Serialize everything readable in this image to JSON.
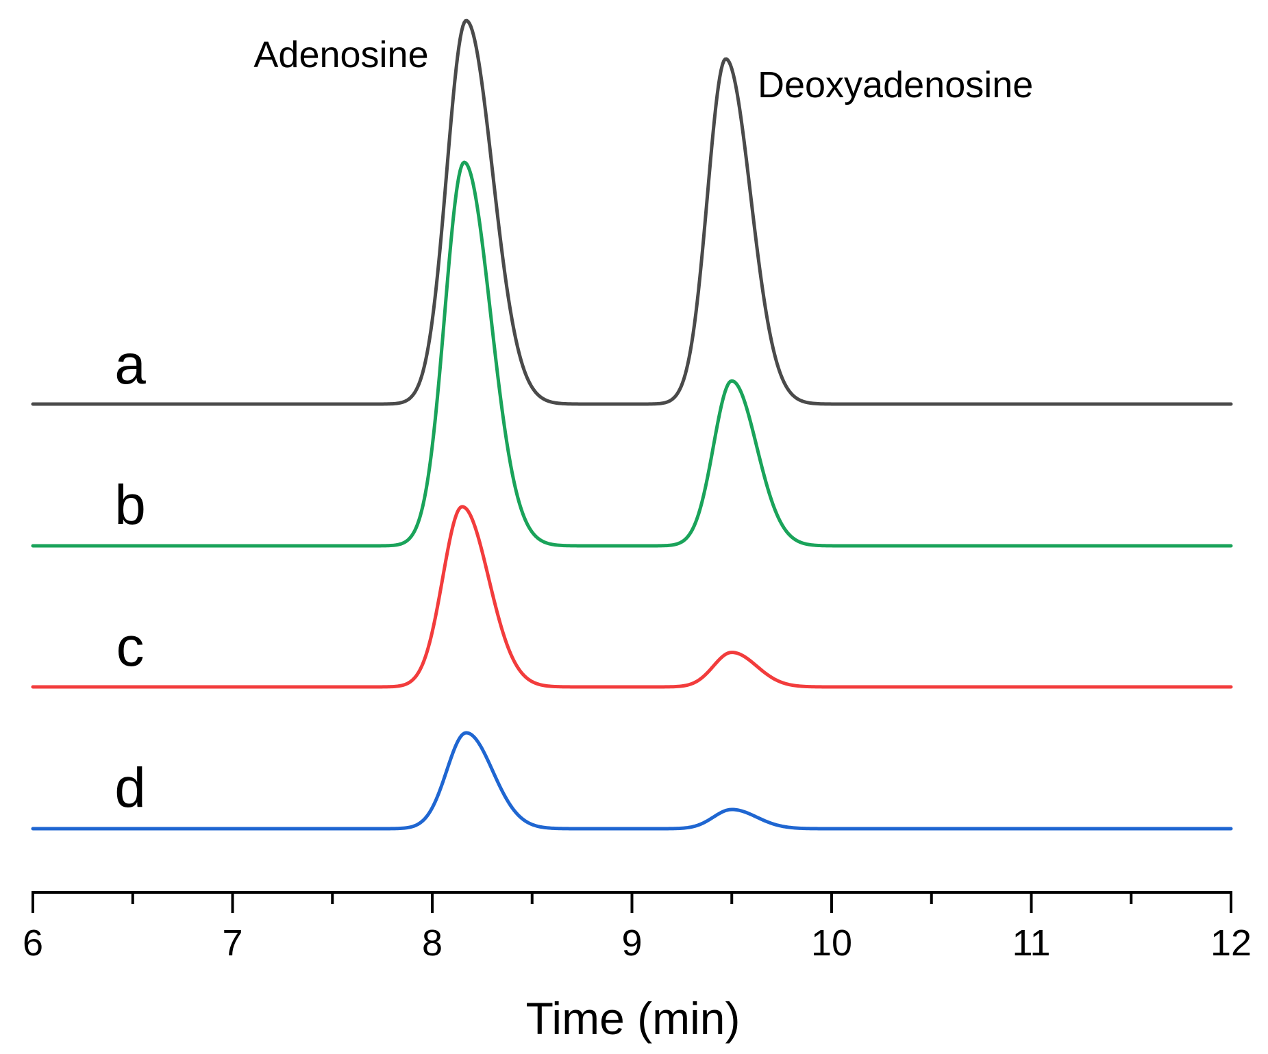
{
  "chart_data": {
    "type": "line",
    "title": "",
    "xlabel": "Time (min)",
    "ylabel": "",
    "xlim": [
      6,
      12
    ],
    "x_ticks": [
      6,
      7,
      8,
      9,
      10,
      11,
      12
    ],
    "grid": false,
    "annotations": [
      {
        "text": "Adenosine",
        "x": 8.17
      },
      {
        "text": "Deoxyadenosine",
        "x": 9.47
      }
    ],
    "series": [
      {
        "name": "a",
        "color": "#4a4a4a",
        "peaks": [
          {
            "x": 8.17,
            "height": 1.0
          },
          {
            "x": 9.47,
            "height": 0.9
          }
        ]
      },
      {
        "name": "b",
        "color": "#1aa35a",
        "peaks": [
          {
            "x": 8.16,
            "height": 1.0
          },
          {
            "x": 9.5,
            "height": 0.43
          }
        ]
      },
      {
        "name": "c",
        "color": "#f23c3c",
        "peaks": [
          {
            "x": 8.15,
            "height": 0.47
          },
          {
            "x": 9.5,
            "height": 0.09
          }
        ]
      },
      {
        "name": "d",
        "color": "#1f66d1",
        "peaks": [
          {
            "x": 8.17,
            "height": 0.25
          },
          {
            "x": 9.5,
            "height": 0.05
          }
        ]
      }
    ]
  }
}
